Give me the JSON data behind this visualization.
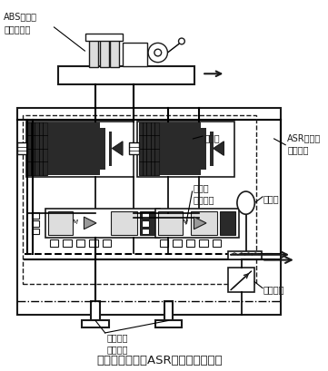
{
  "title": "变容调压原理的ASR制动压力调节器",
  "label_abs": "ABS制动力\n压力调节器",
  "label_asr": "ASR制动压\n力调节器",
  "label_tiaoyaqang": "调压缸",
  "label_sanwei": "三位三\n通电磁阀",
  "label_xuya": "蓄压器",
  "label_yali": "压力开关",
  "label_qudong": "驱动车轮\n制动轮缸",
  "bg_color": "#ffffff",
  "line_color": "#1a1a1a",
  "dark_fill": "#2a2a2a",
  "mid_gray": "#999999",
  "light_gray": "#dddddd"
}
